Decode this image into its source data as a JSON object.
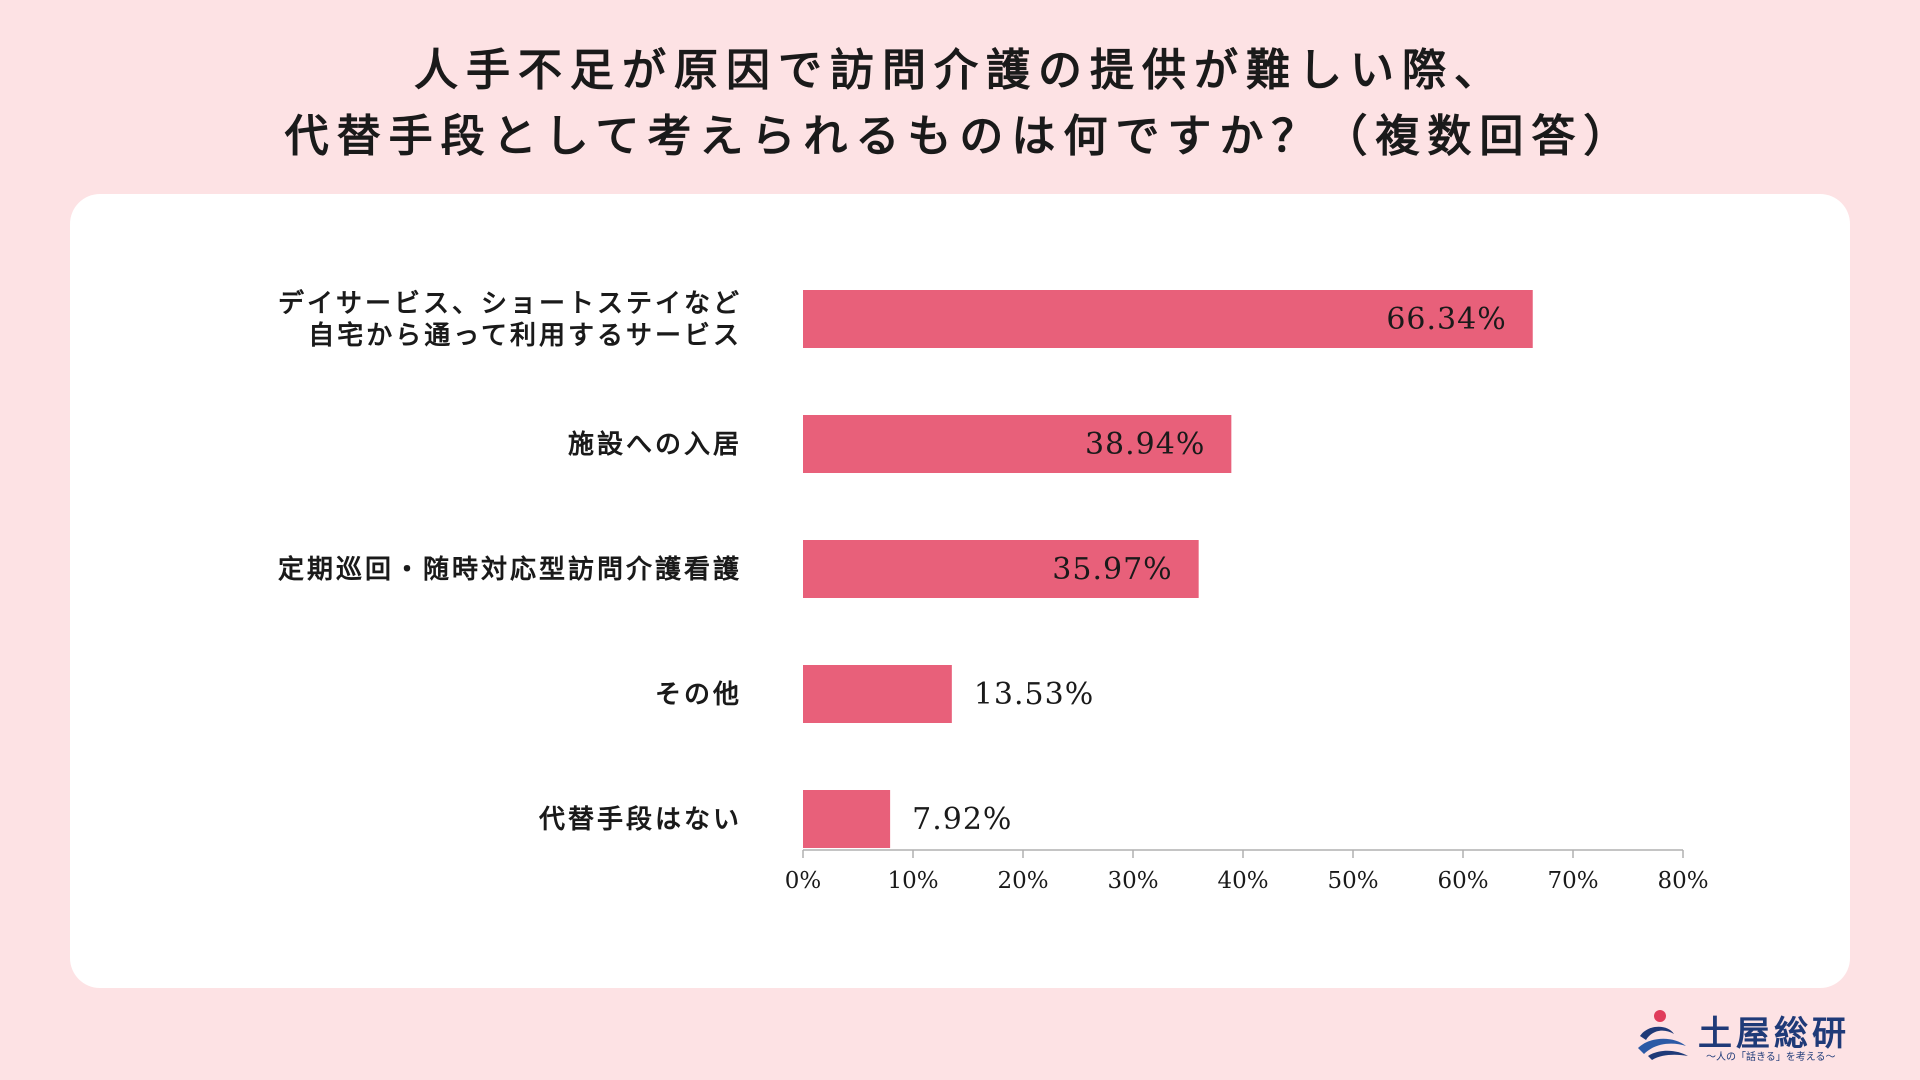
{
  "title": {
    "line1": "人手不足が原因で訪問介護の提供が難しい際、",
    "line2": "代替手段として考えられるものは何ですか？（複数回答）"
  },
  "chart_data": {
    "type": "bar",
    "orientation": "horizontal",
    "categories": [
      [
        "デイサービス、ショートステイなど",
        "自宅から通って利用するサービス"
      ],
      [
        "施設への入居"
      ],
      [
        "定期巡回・随時対応型訪問介護看護"
      ],
      [
        "その他"
      ],
      [
        "代替手段はない"
      ]
    ],
    "values": [
      66.34,
      38.94,
      35.97,
      13.53,
      7.92
    ],
    "value_labels": [
      "66.34%",
      "38.94%",
      "35.97%",
      "13.53%",
      "7.92%"
    ],
    "xlim": [
      0,
      80
    ],
    "ticks": [
      0,
      10,
      20,
      30,
      40,
      50,
      60,
      70,
      80
    ],
    "tick_labels": [
      "0%",
      "10%",
      "20%",
      "30%",
      "40%",
      "50%",
      "60%",
      "70%",
      "80%"
    ],
    "bar_color": "#e8607a",
    "grid": false,
    "legend": "none"
  },
  "logo": {
    "name": "土屋総研",
    "tagline": "〜人の「話きる」を考える〜"
  },
  "colors": {
    "background": "#fde2e4",
    "card": "#ffffff",
    "bar": "#e8607a",
    "logo": "#1f3a78"
  }
}
